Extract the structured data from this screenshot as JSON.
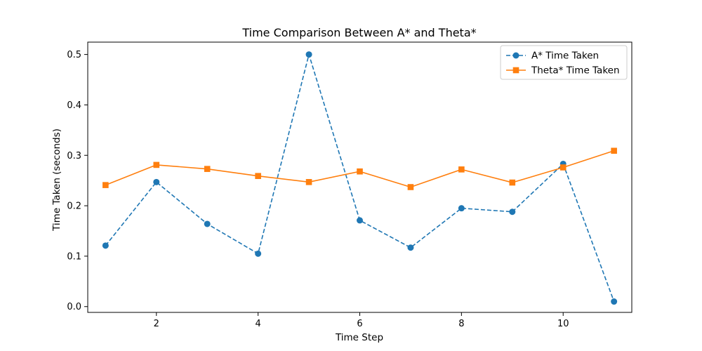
{
  "chart_data": {
    "type": "line",
    "title": "Time Comparison Between A* and Theta*",
    "xlabel": "Time Step",
    "ylabel": "Time Taken (seconds)",
    "x": [
      1,
      2,
      3,
      4,
      5,
      6,
      7,
      8,
      9,
      10,
      11
    ],
    "xlim": [
      0.65,
      11.35
    ],
    "ylim": [
      -0.0115,
      0.5245
    ],
    "xticks": [
      2,
      4,
      6,
      8,
      10
    ],
    "xtick_labels": [
      "2",
      "4",
      "6",
      "8",
      "10"
    ],
    "yticks": [
      0.0,
      0.1,
      0.2,
      0.3,
      0.4,
      0.5
    ],
    "ytick_labels": [
      "0.0",
      "0.1",
      "0.2",
      "0.3",
      "0.4",
      "0.5"
    ],
    "grid": false,
    "legend_position": "top-right",
    "series": [
      {
        "name": "A* Time Taken",
        "color": "#1f77b4",
        "linestyle": "dashed",
        "marker": "circle",
        "values": [
          0.121,
          0.247,
          0.164,
          0.105,
          0.5,
          0.171,
          0.117,
          0.195,
          0.188,
          0.283,
          0.01
        ]
      },
      {
        "name": "Theta* Time Taken",
        "color": "#ff7f0e",
        "linestyle": "solid",
        "marker": "square",
        "values": [
          0.241,
          0.281,
          0.273,
          0.259,
          0.247,
          0.268,
          0.237,
          0.272,
          0.246,
          0.276,
          0.309
        ]
      }
    ]
  }
}
